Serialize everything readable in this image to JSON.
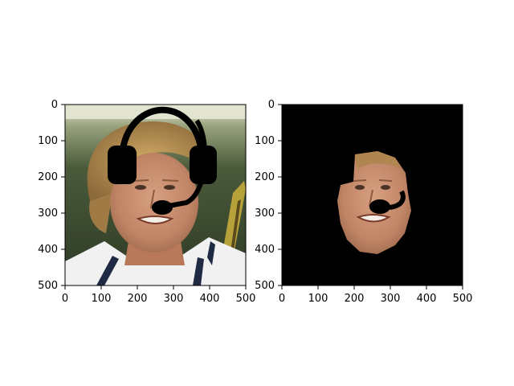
{
  "figure": {
    "panels": [
      {
        "id": "left",
        "content": "Photo of a curly-haired blond man in a white shirt with a black headset overlay (ear cups, headband, microphone boom)",
        "xticks": [
          "0",
          "100",
          "200",
          "300",
          "400",
          "500"
        ],
        "yticks": [
          "0",
          "100",
          "200",
          "300",
          "400",
          "500"
        ]
      },
      {
        "id": "right",
        "content": "Same image masked to face region only on black background, headset microphone overlaid",
        "xticks": [
          "0",
          "100",
          "200",
          "300",
          "400",
          "500"
        ],
        "yticks": [
          "0",
          "100",
          "200",
          "300",
          "400",
          "500"
        ]
      }
    ]
  },
  "colors": {
    "background_bar": "#000000",
    "skin": "#c9926c",
    "hair": "#b88a4e",
    "backdrop_dark": "#3c4a32",
    "backdrop_light": "#dfe0cc",
    "shirt": "#f2f2f2",
    "headset": "#000000"
  }
}
